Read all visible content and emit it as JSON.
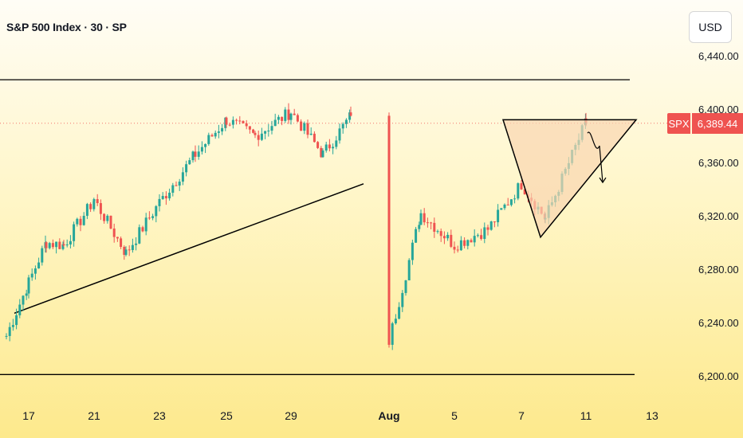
{
  "title": "S&P 500 Index · 30 · SP",
  "currency_button": "USD",
  "symbol_badge": "SPX",
  "last_price_label": "6,389.44",
  "colors": {
    "up": "#26a69a",
    "down": "#ef5350",
    "triangle_fill": "#fad6b0",
    "line": "#000000"
  },
  "chart_data": {
    "type": "candlestick",
    "y_ticks": [
      "6,440.00",
      "6,400.00",
      "6,360.00",
      "6,320.00",
      "6,280.00",
      "6,240.00",
      "6,200.00"
    ],
    "x_ticks": [
      "17",
      "21",
      "23",
      "25",
      "29",
      "Aug",
      "5",
      "7",
      "11",
      "13"
    ],
    "ylim": [
      6200,
      6440
    ],
    "last_price": 6389.44,
    "resistance_level": 6422,
    "support_level": 6201,
    "trendline": {
      "from": [
        "17",
        6247
      ],
      "to": [
        "31",
        6344
      ]
    },
    "triangle": {
      "top_left": [
        "7",
        6392
      ],
      "top_right": [
        "12",
        6392
      ],
      "bottom": [
        "8",
        6304
      ]
    },
    "projection": {
      "direction": "down",
      "from": 6382,
      "to": 6345
    },
    "price_path": [
      {
        "date": "16",
        "close": 6230
      },
      {
        "date": "17",
        "close": 6270
      },
      {
        "date": "18",
        "close": 6300
      },
      {
        "date": "19",
        "close": 6298
      },
      {
        "date": "21",
        "close": 6332
      },
      {
        "date": "22",
        "close": 6292
      },
      {
        "date": "23",
        "close": 6330
      },
      {
        "date": "24",
        "close": 6366
      },
      {
        "date": "25",
        "close": 6392
      },
      {
        "date": "28",
        "close": 6380
      },
      {
        "date": "29",
        "close": 6398
      },
      {
        "date": "30",
        "close": 6366
      },
      {
        "date": "31",
        "close": 6395
      },
      {
        "date": "Aug",
        "close": 6226
      },
      {
        "date": "4",
        "close": 6322
      },
      {
        "date": "5",
        "close": 6298
      },
      {
        "date": "6",
        "close": 6310
      },
      {
        "date": "7",
        "close": 6344
      },
      {
        "date": "8",
        "close": 6318
      },
      {
        "date": "11",
        "close": 6390
      }
    ]
  }
}
